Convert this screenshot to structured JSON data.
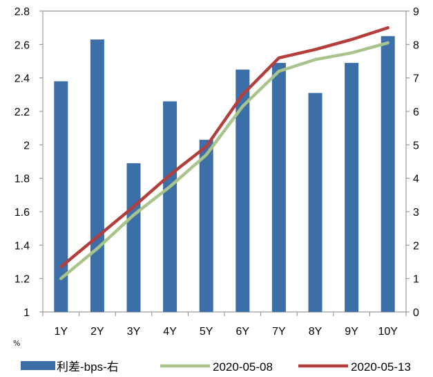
{
  "chart_data": {
    "type": "bar",
    "categories": [
      "1Y",
      "2Y",
      "3Y",
      "4Y",
      "5Y",
      "6Y",
      "7Y",
      "8Y",
      "9Y",
      "10Y"
    ],
    "y_left": {
      "ticks": [
        "1",
        "1.2",
        "1.4",
        "1.6",
        "1.8",
        "2",
        "2.2",
        "2.4",
        "2.6",
        "2.8"
      ],
      "ylim": [
        1,
        2.8
      ],
      "unit_label": "%"
    },
    "y_right": {
      "ticks": [
        "0",
        "1",
        "2",
        "3",
        "4",
        "5",
        "6",
        "7",
        "8",
        "9"
      ],
      "ylim": [
        0,
        9
      ]
    },
    "grid": false,
    "legend_position": "bottom",
    "series": [
      {
        "name": "利差-bps-右",
        "type": "bar",
        "axis": "right",
        "color": "#3C6EA8",
        "values": [
          6.9,
          8.15,
          4.45,
          6.3,
          5.15,
          7.25,
          7.45,
          6.55,
          7.45,
          8.25
        ]
      },
      {
        "name": "2020-05-08",
        "type": "line",
        "axis": "left",
        "color": "#A8C48A",
        "values": [
          1.2,
          1.38,
          1.58,
          1.75,
          1.94,
          2.23,
          2.44,
          2.51,
          2.55,
          2.61
        ]
      },
      {
        "name": "2020-05-13",
        "type": "line",
        "axis": "left",
        "color": "#B33F3D",
        "values": [
          1.27,
          1.45,
          1.63,
          1.82,
          1.99,
          2.3,
          2.52,
          2.57,
          2.63,
          2.7
        ]
      }
    ]
  }
}
